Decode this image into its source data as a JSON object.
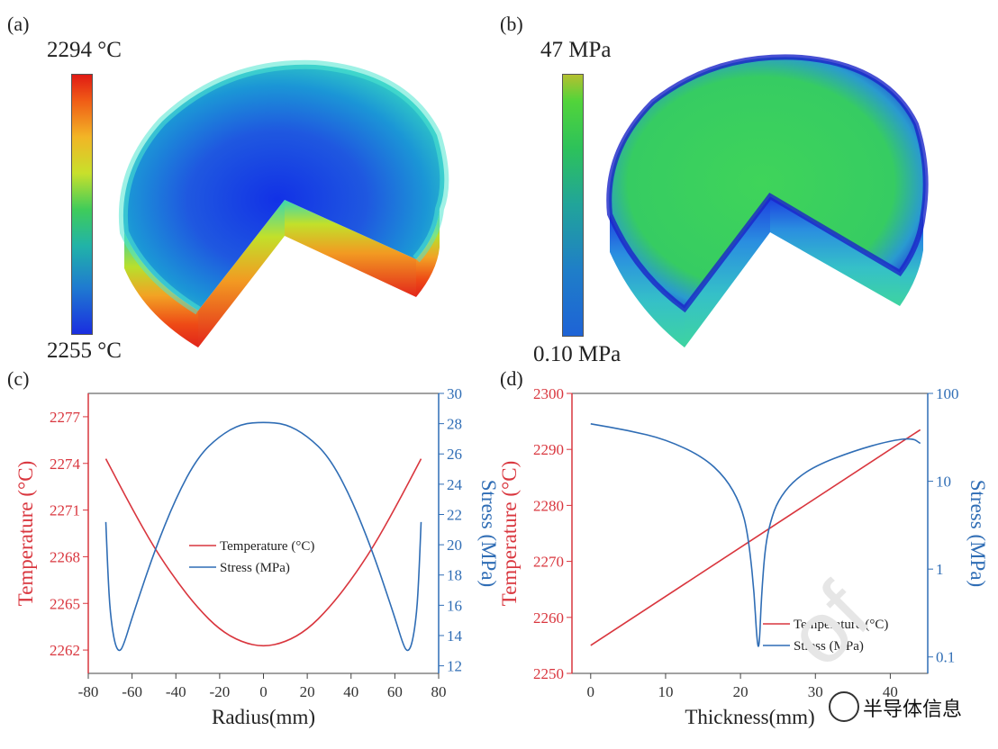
{
  "panels": {
    "a": {
      "label": "(a)",
      "cb_max": "2294 °C",
      "cb_min": "2255 °C"
    },
    "b": {
      "label": "(b)",
      "cb_max": "47 MPa",
      "cb_min": "0.10 MPa"
    },
    "c": {
      "label": "(c)"
    },
    "d": {
      "label": "(d)"
    }
  },
  "colors": {
    "temperature": "#d9363e",
    "stress": "#2f6db5"
  },
  "chart_data": [
    {
      "type": "line",
      "panel": "c",
      "xlabel": "Radius(mm)",
      "ylabel_left": "Temperature (°C)",
      "ylabel_right": "Stress (MPa)",
      "xlim": [
        -80,
        80
      ],
      "xticks": [
        "-80",
        "-60",
        "-40",
        "-20",
        "0",
        "20",
        "40",
        "60",
        "80"
      ],
      "xtick_values": [
        -80,
        -60,
        -40,
        -20,
        0,
        20,
        40,
        60,
        80
      ],
      "ylim_left": [
        2260.5,
        2278.5
      ],
      "yticks_left": [
        "2262",
        "2265",
        "2268",
        "2271",
        "2274",
        "2277"
      ],
      "ytick_values_left": [
        2262,
        2265,
        2268,
        2271,
        2274,
        2277
      ],
      "ylim_right": [
        11.5,
        30
      ],
      "yticks_right": [
        "12",
        "14",
        "16",
        "18",
        "20",
        "22",
        "24",
        "26",
        "28",
        "30"
      ],
      "ytick_values_right": [
        12,
        14,
        16,
        18,
        20,
        22,
        24,
        26,
        28,
        30
      ],
      "legend": [
        "Temperature (°C)",
        "Stress (MPa)"
      ],
      "series": [
        {
          "name": "Temperature (°C)",
          "axis": "left",
          "x": [
            -72,
            -60,
            -50,
            -40,
            -30,
            -20,
            -10,
            0,
            10,
            20,
            30,
            40,
            50,
            60,
            72
          ],
          "y": [
            2274.3,
            2271.1,
            2268.6,
            2266.5,
            2264.7,
            2263.3,
            2262.5,
            2262.2,
            2262.5,
            2263.3,
            2264.7,
            2266.5,
            2268.6,
            2271.1,
            2274.3
          ]
        },
        {
          "name": "Stress (MPa)",
          "axis": "right",
          "x": [
            -72,
            -71,
            -70,
            -68,
            -66,
            -64,
            -60,
            -50,
            -40,
            -30,
            -20,
            -10,
            0,
            10,
            20,
            30,
            40,
            50,
            60,
            64,
            66,
            68,
            70,
            71,
            72
          ],
          "y": [
            21.5,
            18,
            15.5,
            13.5,
            12.9,
            13.3,
            15.2,
            19.5,
            23.1,
            25.8,
            27.2,
            28.0,
            28.1,
            28.0,
            27.2,
            25.8,
            23.1,
            19.5,
            15.2,
            13.3,
            12.9,
            13.5,
            15.5,
            18,
            21.5
          ]
        }
      ]
    },
    {
      "type": "line",
      "panel": "d",
      "xlabel": "Thickness(mm)",
      "ylabel_left": "Temperature (°C)",
      "ylabel_right": "Stress (MPa)",
      "xlim": [
        -2.5,
        45
      ],
      "xticks": [
        "0",
        "10",
        "20",
        "30",
        "40"
      ],
      "xtick_values": [
        0,
        10,
        20,
        30,
        40
      ],
      "ylim_left": [
        2250,
        2300
      ],
      "yticks_left": [
        "2250",
        "2260",
        "2270",
        "2280",
        "2290",
        "2300"
      ],
      "ytick_values_left": [
        2250,
        2260,
        2270,
        2280,
        2290,
        2300
      ],
      "yscale_right": "log",
      "ylim_right": [
        0.065,
        100
      ],
      "yticks_right": [
        "0.1",
        "1",
        "10",
        "100"
      ],
      "ytick_values_right": [
        0.1,
        1,
        10,
        100
      ],
      "legend": [
        "Temperature (°C)",
        "Stress (MPa)"
      ],
      "series": [
        {
          "name": "Temperature (°C)",
          "axis": "left",
          "x": [
            0,
            44
          ],
          "y": [
            2255,
            2293.5
          ]
        },
        {
          "name": "Stress (MPa)",
          "axis": "right",
          "x": [
            0,
            5,
            10,
            15,
            18,
            20,
            21,
            21.8,
            22.2,
            22.5,
            22.8,
            23.3,
            24,
            25,
            27,
            30,
            35,
            40,
            43,
            44
          ],
          "y": [
            45,
            38,
            30,
            19,
            11,
            5.5,
            2.5,
            0.6,
            0.15,
            0.12,
            0.5,
            1.8,
            3.5,
            6,
            10,
            15,
            22,
            29,
            31,
            27
          ]
        }
      ]
    }
  ],
  "watermark": {
    "text": "半导体信息",
    "faint": "of"
  }
}
